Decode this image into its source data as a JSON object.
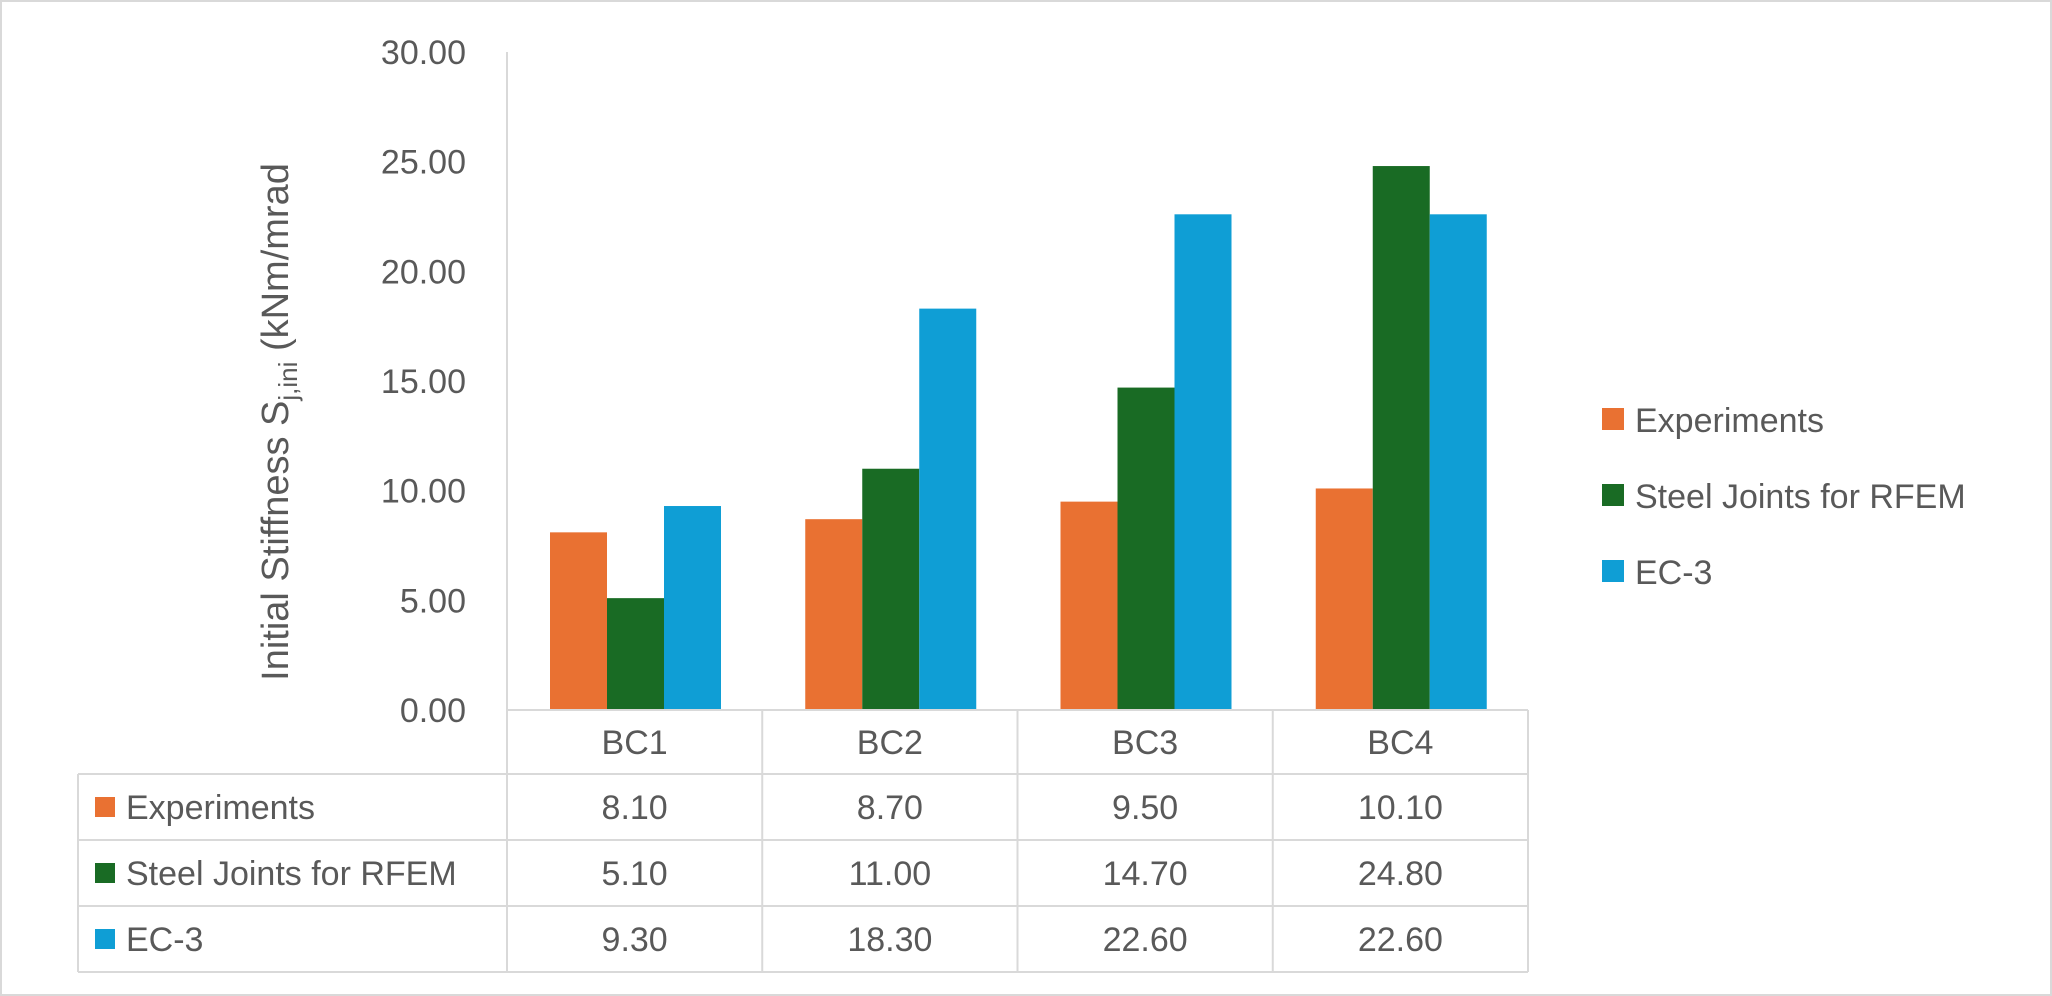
{
  "chart_data": {
    "type": "bar",
    "categories": [
      "BC1",
      "BC2",
      "BC3",
      "BC4"
    ],
    "series": [
      {
        "name": "Experiments",
        "values": [
          8.1,
          8.7,
          9.5,
          10.1
        ],
        "color": "#e97132"
      },
      {
        "name": "Steel Joints for RFEM",
        "values": [
          5.1,
          11.0,
          14.7,
          24.8
        ],
        "color": "#196b24"
      },
      {
        "name": "EC-3",
        "values": [
          9.3,
          18.3,
          22.6,
          22.6
        ],
        "color": "#0f9ed5"
      }
    ],
    "ylabel": "Initial Stiffness S",
    "ylabel_subscript": "j,ini",
    "ylabel_suffix": " (kNm/mrad",
    "ylim": [
      0,
      30
    ],
    "yticks": [
      "0.00",
      "5.00",
      "10.00",
      "15.00",
      "20.00",
      "25.00",
      "30.00"
    ],
    "grid": false,
    "legend_position": "right",
    "data_table": {
      "rows": [
        {
          "label": "Experiments",
          "cells": [
            "8.10",
            "8.70",
            "9.50",
            "10.10"
          ]
        },
        {
          "label": "Steel Joints for RFEM",
          "cells": [
            "5.10",
            "11.00",
            "14.70",
            "24.80"
          ]
        },
        {
          "label": "EC-3",
          "cells": [
            "9.30",
            "18.30",
            "22.60",
            "22.60"
          ]
        }
      ]
    }
  }
}
